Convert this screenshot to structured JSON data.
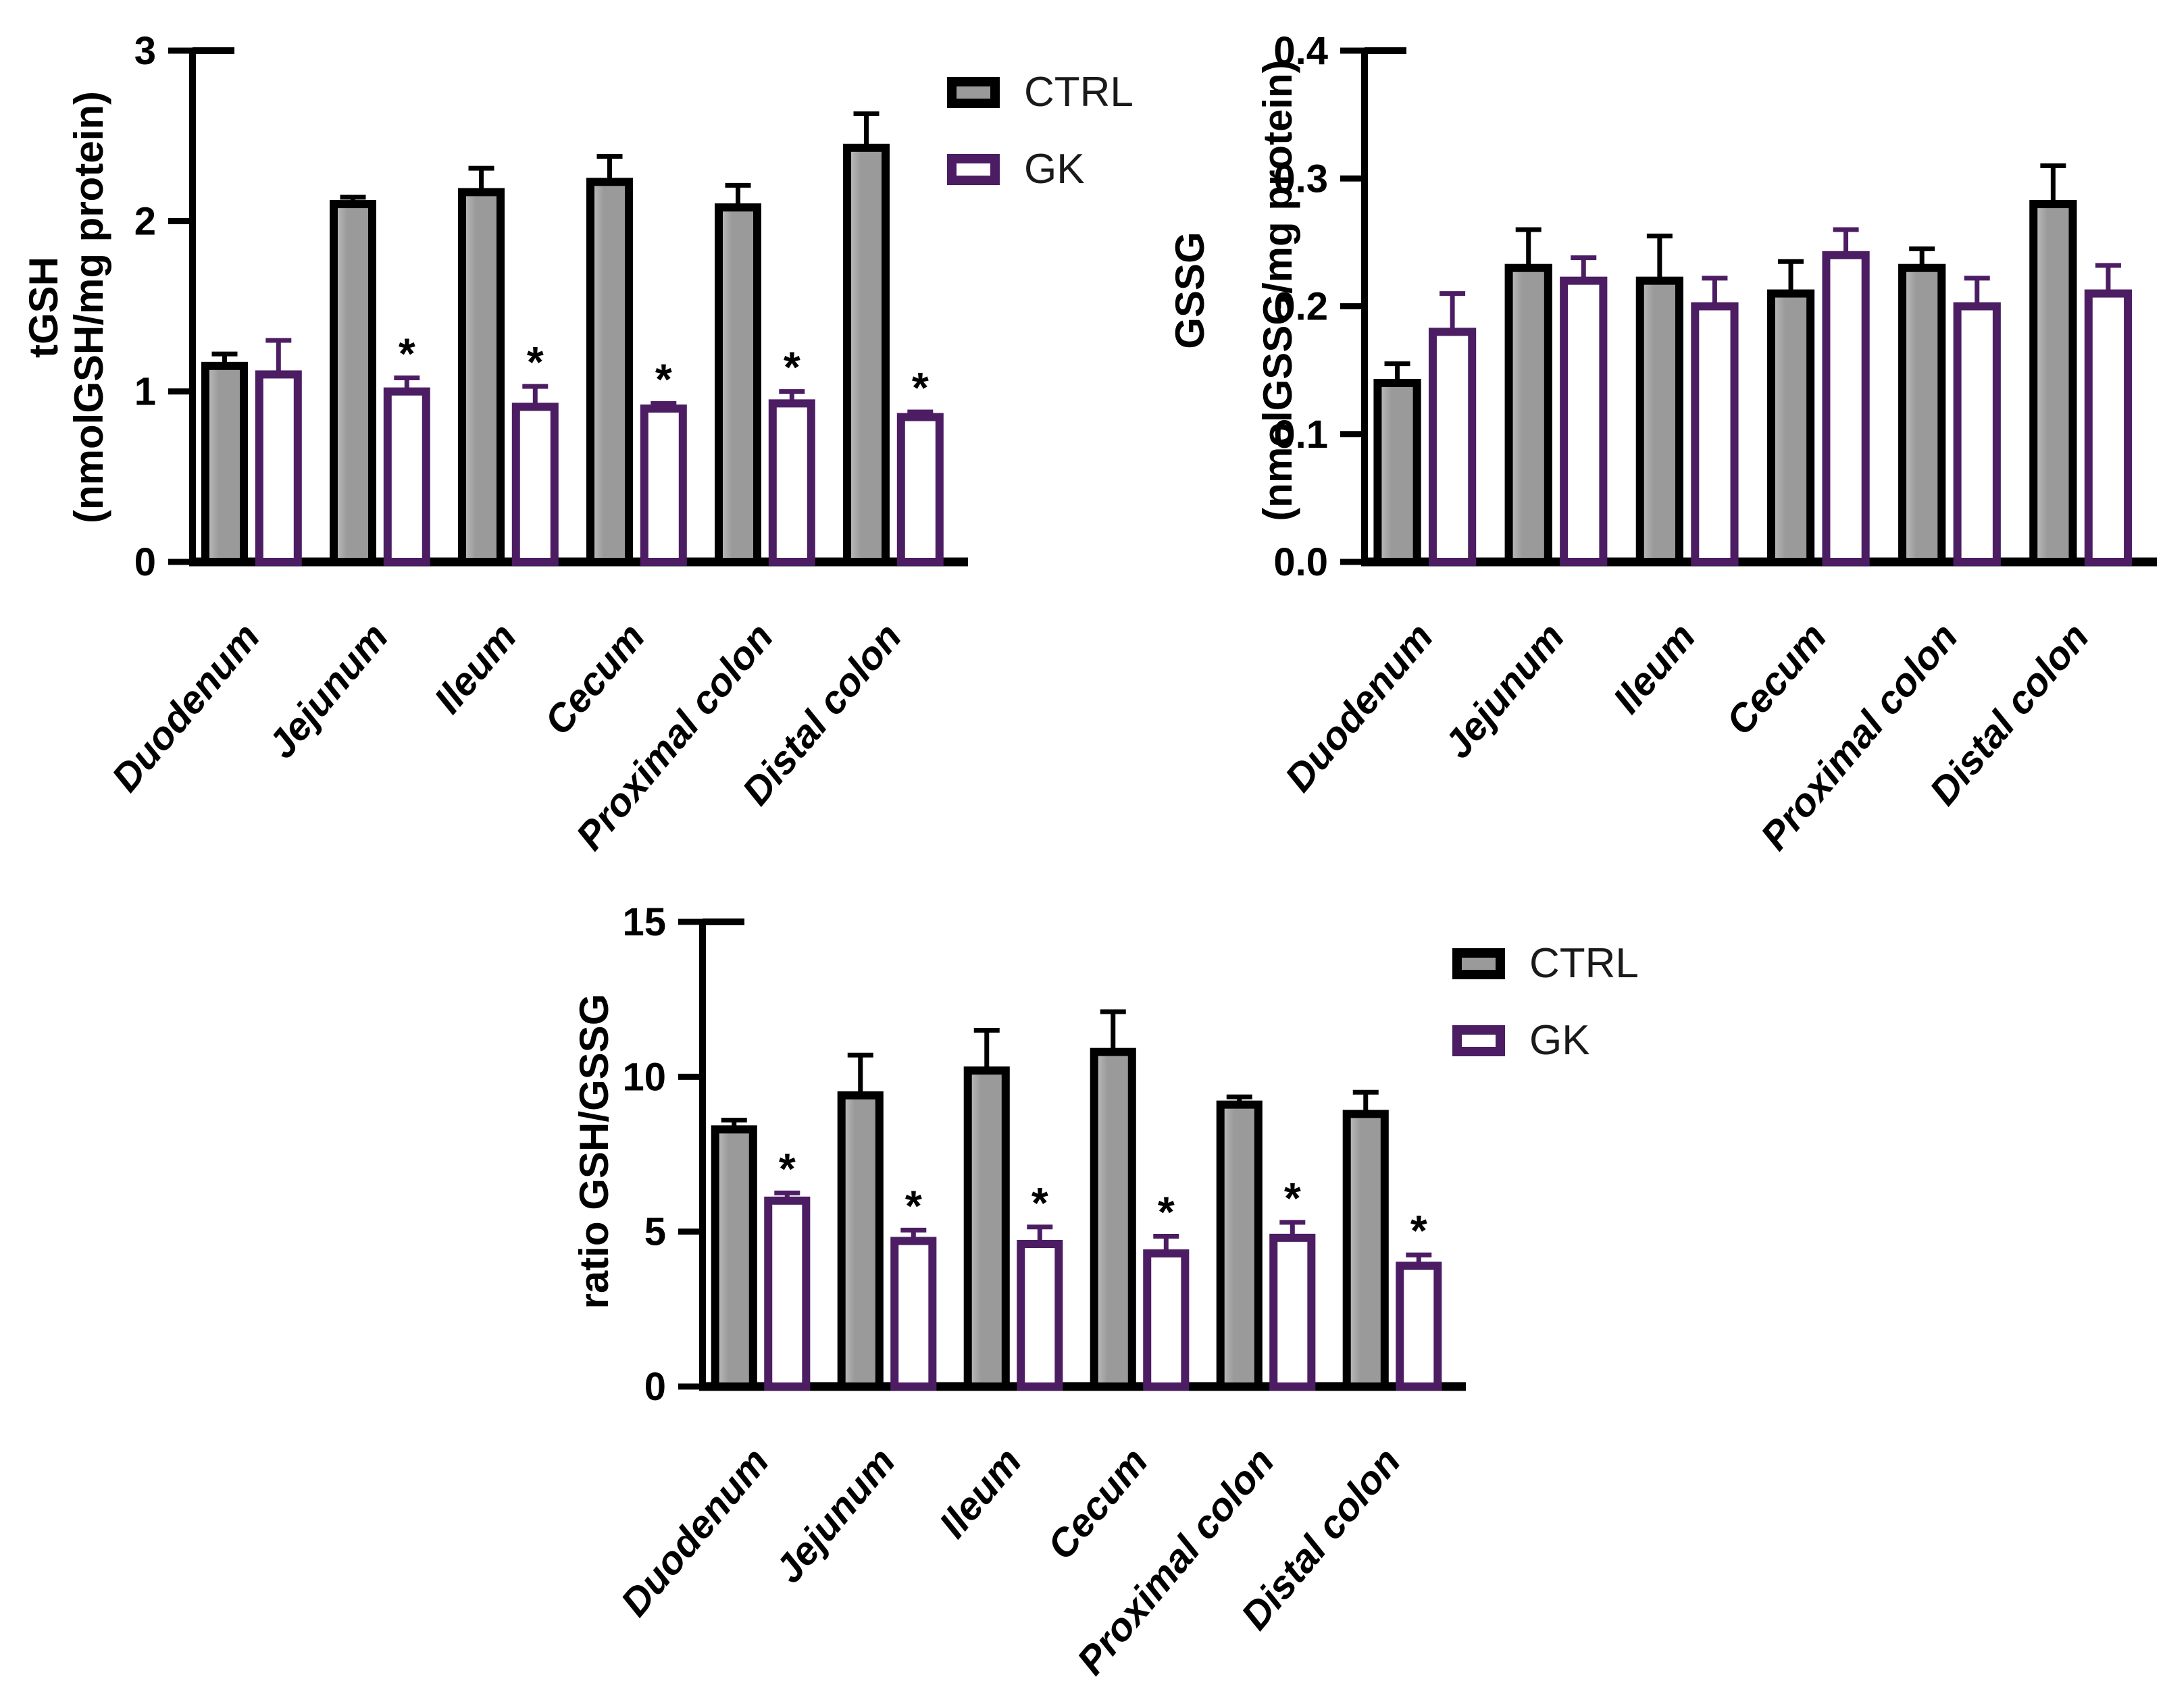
{
  "figure": {
    "background": "#ffffff",
    "significance_marker": "*",
    "legend_labels": {
      "ctrl": "CTRL",
      "gk": "GK"
    },
    "colors": {
      "ctrl_fill": "#9a9a9a",
      "ctrl_fill_highlight": "#c2c2c2",
      "ctrl_edge": "#000000",
      "gk_fill": "#ffffff",
      "gk_edge": "#4c1d63",
      "axis": "#000000",
      "sig_marker": "#000000"
    }
  },
  "chart_data": [
    {
      "id": "tgsh",
      "type": "bar",
      "title": "",
      "ylabel_lines": [
        "tGSH",
        "(nmolGSH/mg protein)"
      ],
      "xlabel": "",
      "categories": [
        "Duodenum",
        "Jejunum",
        "Ileum",
        "Cecum",
        "Proximal colon",
        "Distal colon"
      ],
      "ylim": [
        0,
        3
      ],
      "ytick_values": [
        0,
        1,
        2,
        3
      ],
      "ytick_labels": [
        "0",
        "1",
        "2",
        "3"
      ],
      "grid": false,
      "has_legend": true,
      "legend_position": "top-right",
      "series": [
        {
          "name": "CTRL",
          "style": "ctrl",
          "values": [
            1.15,
            2.1,
            2.17,
            2.23,
            2.08,
            2.43
          ],
          "errors": [
            0.07,
            0.04,
            0.14,
            0.15,
            0.13,
            0.2
          ],
          "significant": [
            false,
            false,
            false,
            false,
            false,
            false
          ]
        },
        {
          "name": "GK",
          "style": "gk",
          "values": [
            1.1,
            1.0,
            0.91,
            0.9,
            0.93,
            0.85
          ],
          "errors": [
            0.2,
            0.08,
            0.12,
            0.03,
            0.07,
            0.03
          ],
          "significant": [
            false,
            true,
            true,
            true,
            true,
            true
          ]
        }
      ]
    },
    {
      "id": "gssg",
      "type": "bar",
      "title": "",
      "ylabel_lines": [
        "GSSG",
        "(nmolGSSG/mg protein)"
      ],
      "xlabel": "",
      "categories": [
        "Duodenum",
        "Jejunum",
        "Ileum",
        "Cecum",
        "Proximal colon",
        "Distal colon"
      ],
      "ylim": [
        0,
        0.4
      ],
      "ytick_values": [
        0,
        0.1,
        0.2,
        0.3,
        0.4
      ],
      "ytick_labels": [
        "0.0",
        "0.1",
        "0.2",
        "0.3",
        "0.4"
      ],
      "grid": false,
      "has_legend": false,
      "legend_position": "none",
      "series": [
        {
          "name": "CTRL",
          "style": "ctrl",
          "values": [
            0.14,
            0.23,
            0.22,
            0.21,
            0.23,
            0.28
          ],
          "errors": [
            0.015,
            0.03,
            0.035,
            0.025,
            0.015,
            0.03
          ],
          "significant": [
            false,
            false,
            false,
            false,
            false,
            false
          ]
        },
        {
          "name": "GK",
          "style": "gk",
          "values": [
            0.18,
            0.22,
            0.2,
            0.24,
            0.2,
            0.21
          ],
          "errors": [
            0.03,
            0.018,
            0.022,
            0.02,
            0.022,
            0.022
          ],
          "significant": [
            false,
            false,
            false,
            false,
            false,
            false
          ]
        }
      ]
    },
    {
      "id": "ratio",
      "type": "bar",
      "title": "",
      "ylabel_lines": [
        "ratio GSH/GSSG"
      ],
      "xlabel": "",
      "categories": [
        "Duodenum",
        "Jejunum",
        "Ileum",
        "Cecum",
        "Proximal colon",
        "Distal colon"
      ],
      "ylim": [
        0,
        15
      ],
      "ytick_values": [
        0,
        5,
        10,
        15
      ],
      "ytick_labels": [
        "0",
        "5",
        "10",
        "15"
      ],
      "grid": false,
      "has_legend": true,
      "legend_position": "top-right",
      "series": [
        {
          "name": "CTRL",
          "style": "ctrl",
          "values": [
            8.3,
            9.4,
            10.2,
            10.8,
            9.1,
            8.8
          ],
          "errors": [
            0.3,
            1.3,
            1.3,
            1.3,
            0.25,
            0.7
          ],
          "significant": [
            false,
            false,
            false,
            false,
            false,
            false
          ]
        },
        {
          "name": "GK",
          "style": "gk",
          "values": [
            6.0,
            4.7,
            4.6,
            4.3,
            4.8,
            3.9
          ],
          "errors": [
            0.25,
            0.35,
            0.55,
            0.55,
            0.5,
            0.35
          ],
          "significant": [
            true,
            true,
            true,
            true,
            true,
            true
          ]
        }
      ]
    }
  ]
}
